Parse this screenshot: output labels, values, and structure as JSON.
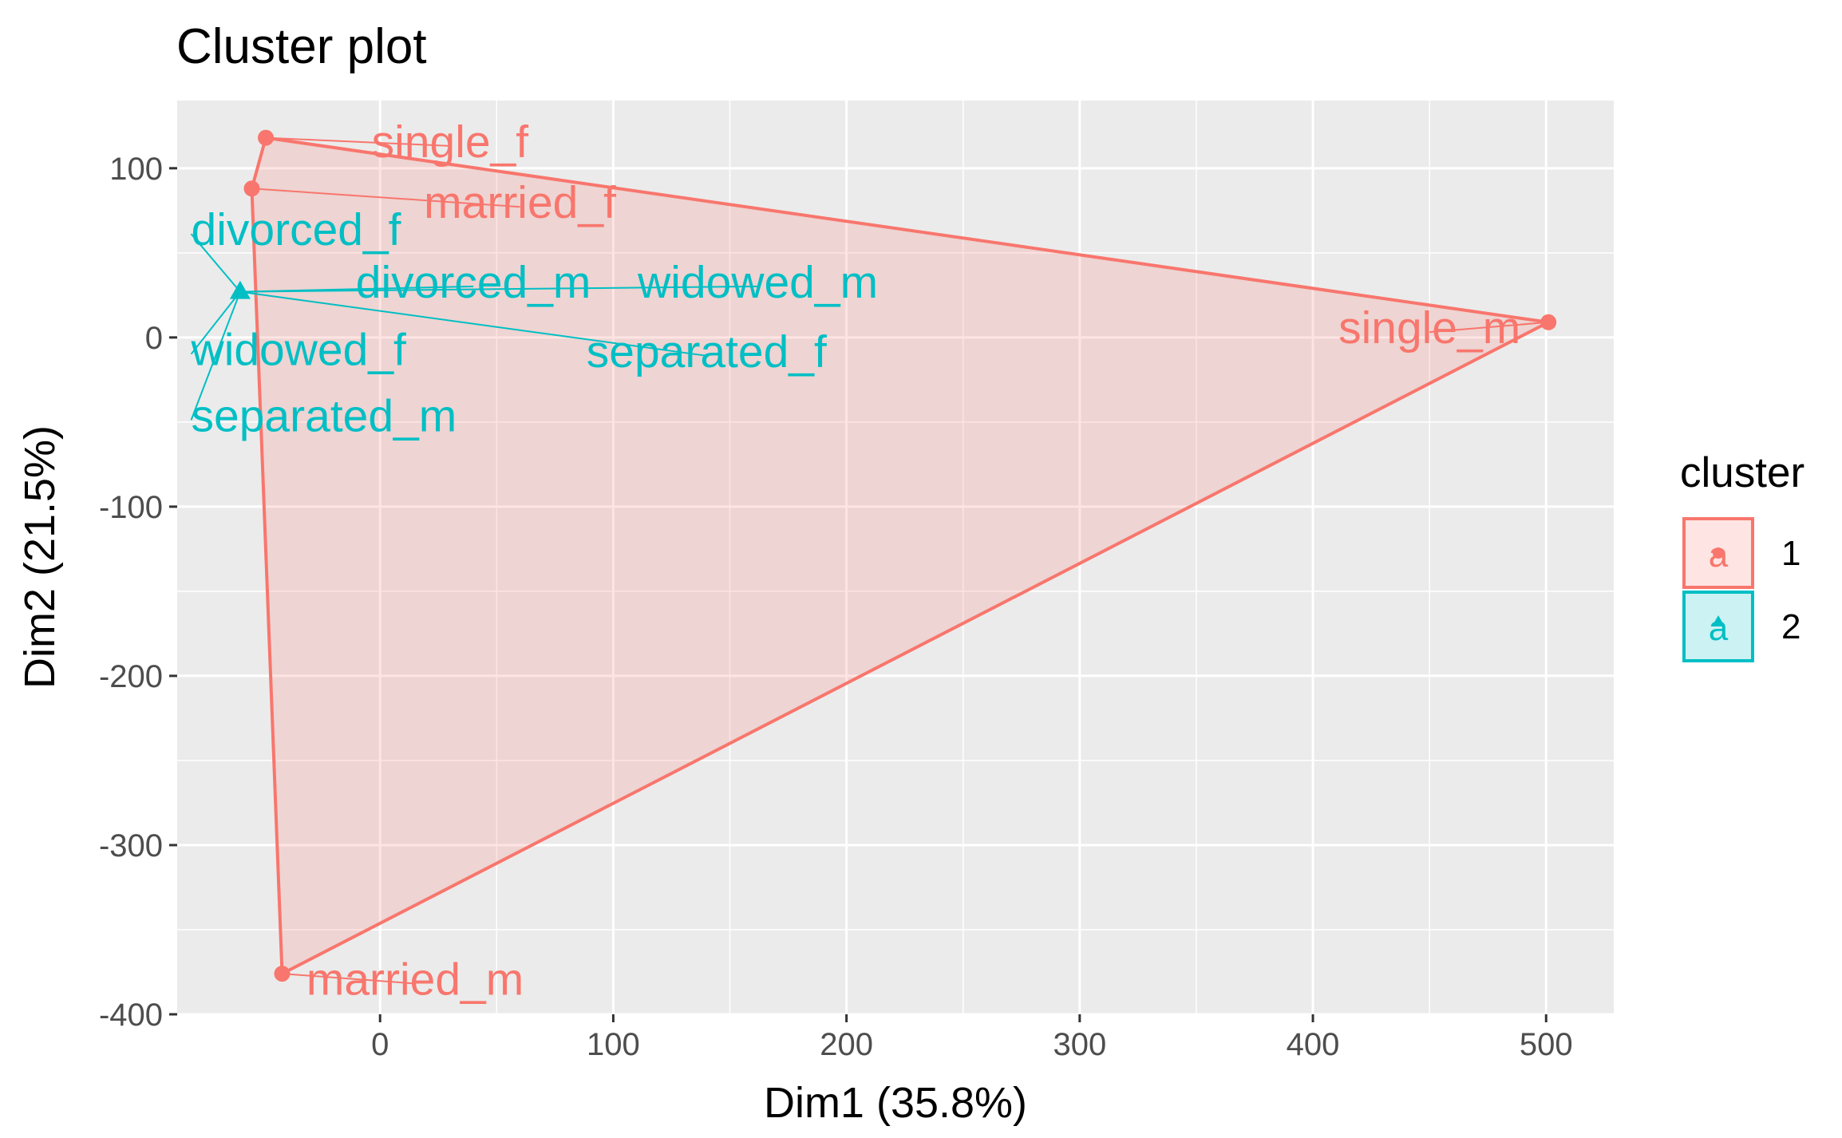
{
  "chart_data": {
    "type": "scatter",
    "title": "Cluster plot",
    "xlabel": "Dim1 (35.8%)",
    "ylabel": "Dim2 (21.5%)",
    "xlim": [
      -87,
      529
    ],
    "ylim": [
      -400,
      140
    ],
    "xticks": [
      0,
      100,
      200,
      300,
      400,
      500
    ],
    "yticks": [
      -400,
      -300,
      -200,
      -100,
      0,
      100
    ],
    "grid": true,
    "legend": {
      "title": "cluster",
      "position": "right",
      "items": [
        {
          "label": "1",
          "color": "#F8766D",
          "shape": "circle"
        },
        {
          "label": "2",
          "color": "#00BFC4",
          "shape": "triangle"
        }
      ]
    },
    "series": [
      {
        "name": "1",
        "color": "#F8766D",
        "shape": "circle",
        "hull": true,
        "points": [
          {
            "label": "single_f",
            "x": -49,
            "y": 118,
            "lx": 30,
            "ly": 116,
            "anchor": "middle"
          },
          {
            "label": "married_f",
            "x": -55,
            "y": 88,
            "lx": 60,
            "ly": 80,
            "anchor": "middle"
          },
          {
            "label": "single_m",
            "x": 501,
            "y": 9,
            "lx": 450,
            "ly": 6,
            "anchor": "middle"
          },
          {
            "label": "married_m",
            "x": -42,
            "y": -376,
            "lx": 15,
            "ly": -379,
            "anchor": "middle"
          }
        ]
      },
      {
        "name": "2",
        "color": "#00BFC4",
        "shape": "triangle",
        "hull": false,
        "points": [
          {
            "label": "divorced_f",
            "x": -60,
            "y": 27,
            "lx": -81,
            "ly": 64,
            "anchor": "start"
          },
          {
            "label": "divorced_m",
            "x": -60,
            "y": 27,
            "lx": 40,
            "ly": 33,
            "anchor": "middle"
          },
          {
            "label": "widowed_m",
            "x": -60,
            "y": 27,
            "lx": 162,
            "ly": 33,
            "anchor": "middle"
          },
          {
            "label": "widowed_f",
            "x": -60,
            "y": 27,
            "lx": -81,
            "ly": -7,
            "anchor": "start"
          },
          {
            "label": "separated_f",
            "x": -60,
            "y": 27,
            "lx": 140,
            "ly": -8,
            "anchor": "middle"
          },
          {
            "label": "separated_m",
            "x": -60,
            "y": 27,
            "lx": -81,
            "ly": -46,
            "anchor": "start"
          }
        ]
      }
    ]
  }
}
